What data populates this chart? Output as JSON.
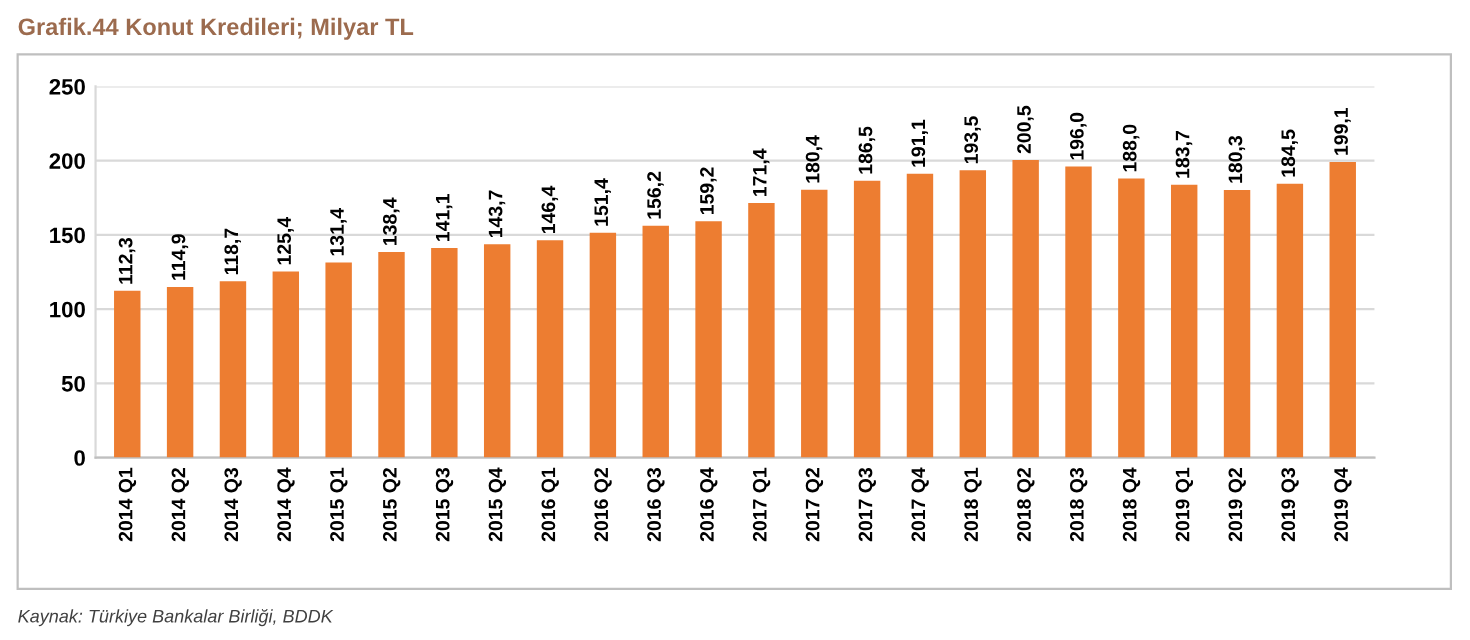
{
  "chart_data": {
    "type": "bar",
    "title": "Grafik.44 Konut Kredileri; Milyar TL",
    "categories": [
      "2014 Q1",
      "2014 Q2",
      "2014 Q3",
      "2014 Q4",
      "2015 Q1",
      "2015 Q2",
      "2015 Q3",
      "2015 Q4",
      "2016 Q1",
      "2016 Q2",
      "2016 Q3",
      "2016 Q4",
      "2017 Q1",
      "2017 Q2",
      "2017 Q3",
      "2017 Q4",
      "2018 Q1",
      "2018 Q2",
      "2018 Q3",
      "2018 Q4",
      "2019 Q1",
      "2019 Q2",
      "2019 Q3",
      "2019 Q4"
    ],
    "values": [
      112.3,
      114.9,
      118.7,
      125.4,
      131.4,
      138.4,
      141.1,
      143.7,
      146.4,
      151.4,
      156.2,
      159.2,
      171.4,
      180.4,
      186.5,
      191.1,
      193.5,
      200.5,
      196.0,
      188.0,
      183.7,
      180.3,
      184.5,
      199.1
    ],
    "value_labels": [
      "112,3",
      "114,9",
      "118,7",
      "125,4",
      "131,4",
      "138,4",
      "141,1",
      "143,7",
      "146,4",
      "151,4",
      "156,2",
      "159,2",
      "171,4",
      "180,4",
      "186,5",
      "191,1",
      "193,5",
      "200,5",
      "196,0",
      "188,0",
      "183,7",
      "180,3",
      "184,5",
      "199,1"
    ],
    "color": "#ed7d31",
    "ylim": [
      0,
      250
    ],
    "yticks": [
      0,
      50,
      100,
      150,
      200,
      250
    ],
    "grid": "y",
    "annotations": [
      "Kaynak: Türkiye Bankalar Birliği, BDDK"
    ]
  }
}
